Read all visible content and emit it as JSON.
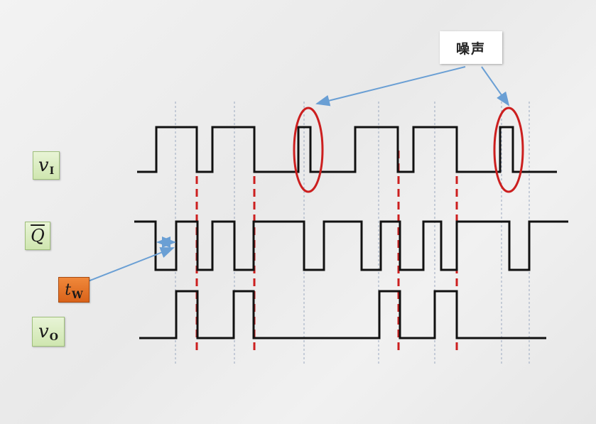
{
  "labels": {
    "vi_main": "v",
    "vi_sub": "I",
    "qbar": "Q",
    "tw_main": "t",
    "tw_sub": "W",
    "vo_main": "v",
    "vo_sub": "O"
  },
  "noise_label": "噪声",
  "colors": {
    "waveform": "#111111",
    "trigger_line": "#cc1f1f",
    "noise_circle": "#cc1f1f",
    "arrow": "#6a9fd4",
    "grid_line": "#9aa8bf",
    "tw_badge": "#e06c22",
    "signal_badge": "#d4eab8"
  },
  "waveforms": {
    "vi": {
      "description_pulses": 6,
      "noise_pulses": 2
    },
    "qbar": {
      "low_pulses": 7
    },
    "vo": {
      "high_pulses": 4
    }
  },
  "icons": {
    "noise_marker": "ellipse-circle",
    "pointer": "arrow"
  }
}
